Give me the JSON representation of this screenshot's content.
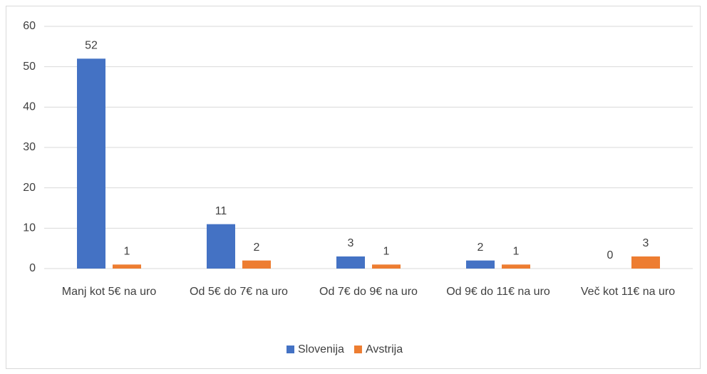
{
  "chart_data": {
    "type": "bar",
    "categories": [
      "Manj kot 5€ na uro",
      "Od 5€ do 7€ na uro",
      "Od 7€ do 9€ na uro",
      "Od 9€ do 11€ na uro",
      "Več kot 11€ na uro"
    ],
    "series": [
      {
        "name": "Slovenija",
        "color": "#4472c4",
        "values": [
          52,
          11,
          3,
          2,
          0
        ]
      },
      {
        "name": "Avstrija",
        "color": "#ed7d31",
        "values": [
          1,
          2,
          1,
          1,
          3
        ]
      }
    ],
    "ylim": [
      0,
      60
    ],
    "yticks": [
      0,
      10,
      20,
      30,
      40,
      50,
      60
    ],
    "grid": true,
    "legend": "bottom"
  }
}
